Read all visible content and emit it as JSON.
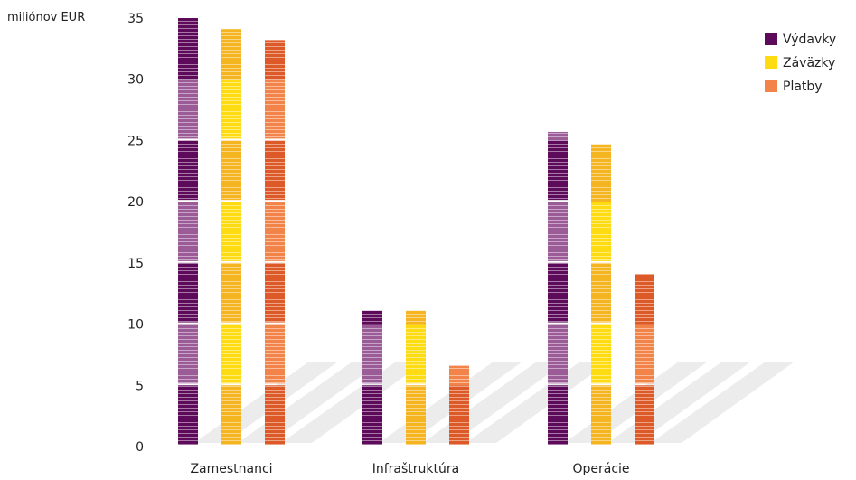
{
  "chart_data": {
    "type": "bar",
    "title": "",
    "ylabel": "miliónov EUR",
    "xlabel": "",
    "categories": [
      "Zamestnanci",
      "Infraštruktúra",
      "Operácie"
    ],
    "series": [
      {
        "name": "Výdavky",
        "values": [
          35.0,
          11.1,
          25.7
        ]
      },
      {
        "name": "Záväzky",
        "values": [
          34.1,
          11.1,
          24.7
        ]
      },
      {
        "name": "Platby",
        "values": [
          33.2,
          6.6,
          14.1
        ]
      }
    ],
    "ylim": [
      0,
      35
    ],
    "yticks": [
      0,
      5,
      10,
      15,
      20,
      25,
      30,
      35
    ],
    "grid": false,
    "legend_position": "top-right"
  },
  "colors": {
    "Výdavky": {
      "dark": "#5e0a5b",
      "light": "#9b5b97"
    },
    "Záväzky": {
      "dark": "#f4b520",
      "light": "#ffdc12"
    },
    "Platby": {
      "dark": "#dd5a28",
      "light": "#f2844a"
    },
    "shadow": "#dcdcdc"
  }
}
